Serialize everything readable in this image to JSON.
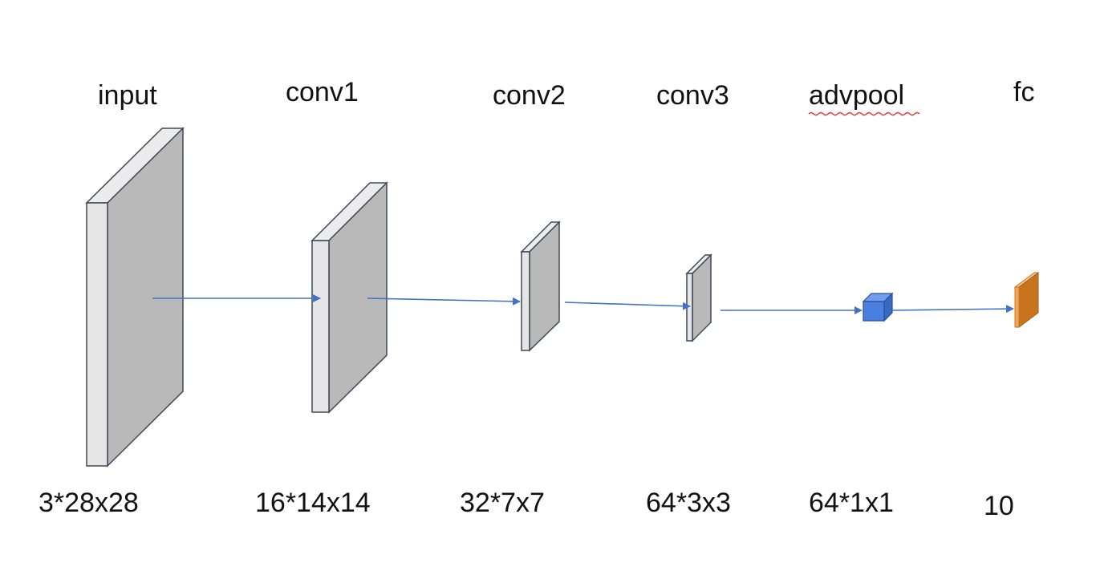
{
  "layers": [
    {
      "name": "input",
      "shape": "3*28x28"
    },
    {
      "name": "conv1",
      "shape": "16*14x14"
    },
    {
      "name": "conv2",
      "shape": "32*7x7"
    },
    {
      "name": "conv3",
      "shape": "64*3x3"
    },
    {
      "name": "advpool",
      "shape": "64*1x1"
    },
    {
      "name": "fc",
      "shape": "10"
    }
  ],
  "colors": {
    "block_front": "#e6e6e6",
    "block_side": "#b9b9b9",
    "block_top": "#ececec",
    "block_stroke": "#3c4a5a",
    "pool_front": "#4a7fe0",
    "pool_top": "#6f9ef0",
    "pool_side": "#3a69c4",
    "fc_front": "#f2a85a",
    "fc_side": "#c8741f",
    "arrow": "#4472c4",
    "spellcheck_underline": "#e23b3b"
  },
  "annotations": {
    "spellcheck_underline_on": "advpool"
  }
}
